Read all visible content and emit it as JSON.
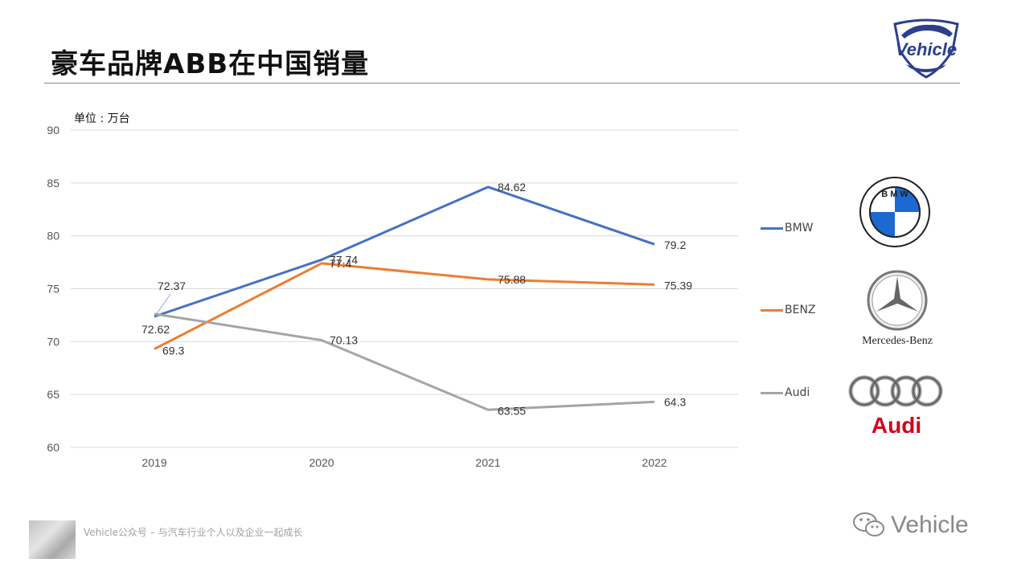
{
  "header": {
    "title": "豪车品牌ABB在中国销量",
    "logo_text": "Vehicle"
  },
  "unit_label": "单位 : 万台",
  "legend": [
    {
      "name": "BMW",
      "color": "#4472C4"
    },
    {
      "name": "BENZ",
      "color": "#ED7D31"
    },
    {
      "name": "Audi",
      "color": "#A5A5A5"
    }
  ],
  "logos": {
    "bmw_letters": "B M W",
    "benz_text": "Mercedes-Benz",
    "audi_text": "Audi"
  },
  "footer": {
    "tagline": "Vehicle公众号 – 与汽车行业个人以及企业一起成长",
    "brand": "Vehicle"
  },
  "chart_data": {
    "type": "line",
    "categories": [
      "2019",
      "2020",
      "2021",
      "2022"
    ],
    "series": [
      {
        "name": "BMW",
        "color": "#4472C4",
        "values": [
          72.37,
          77.74,
          84.62,
          79.2
        ]
      },
      {
        "name": "BENZ",
        "color": "#ED7D31",
        "values": [
          69.3,
          77.4,
          75.88,
          75.39
        ]
      },
      {
        "name": "Audi",
        "color": "#A5A5A5",
        "values": [
          72.62,
          70.13,
          63.55,
          64.3
        ]
      }
    ],
    "ylim": [
      60,
      90
    ],
    "yticks": [
      60,
      65,
      70,
      75,
      80,
      85,
      90
    ],
    "grid": true,
    "legend_position": "right"
  }
}
